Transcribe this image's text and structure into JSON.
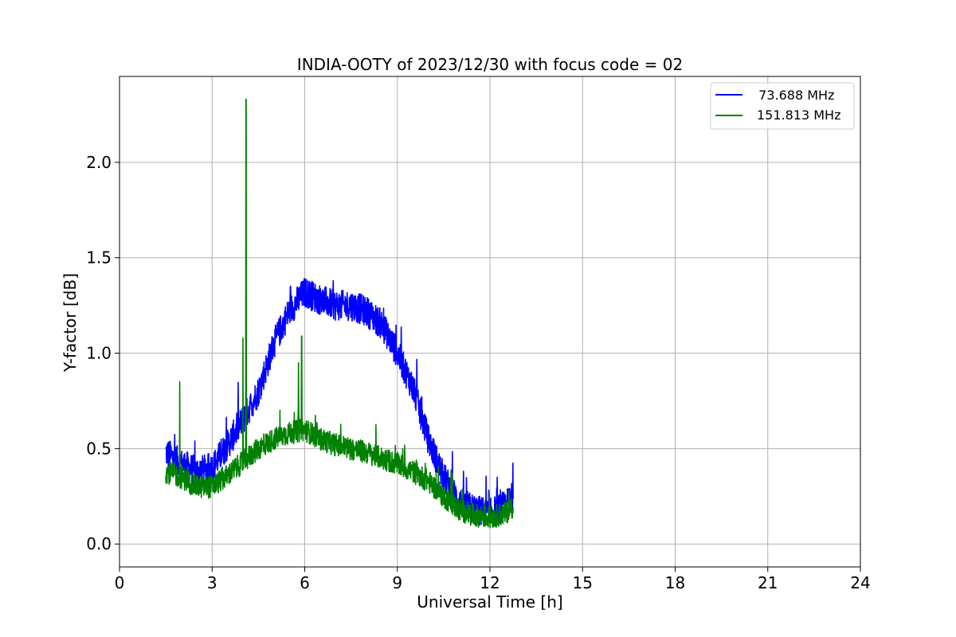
{
  "chart_data": {
    "type": "line",
    "title": "INDIA-OOTY of 2023/12/30 with focus code = 02",
    "xlabel": "Universal Time [h]",
    "ylabel": "Y-factor [dB]",
    "xlim": [
      0,
      24
    ],
    "ylim": [
      -0.12,
      2.45
    ],
    "xticks": [
      0,
      3,
      6,
      9,
      12,
      15,
      18,
      21,
      24
    ],
    "yticks": [
      0.0,
      0.5,
      1.0,
      1.5,
      2.0
    ],
    "xtick_labels": [
      "0",
      "3",
      "6",
      "9",
      "12",
      "15",
      "18",
      "21",
      "24"
    ],
    "ytick_labels": [
      "0.0",
      "0.5",
      "1.0",
      "1.5",
      "2.0"
    ],
    "grid": true,
    "legend_position": "top-right",
    "series": [
      {
        "name": "  73.688 MHz",
        "color": "#0000ff",
        "x": [
          1.5,
          2.0,
          2.5,
          3.0,
          3.5,
          4.0,
          4.5,
          5.0,
          5.5,
          6.0,
          6.5,
          7.0,
          7.5,
          8.0,
          8.5,
          9.0,
          9.5,
          10.0,
          10.5,
          11.0,
          11.5,
          12.0,
          12.5,
          12.75
        ],
        "y": [
          0.48,
          0.42,
          0.38,
          0.4,
          0.52,
          0.65,
          0.8,
          1.05,
          1.22,
          1.32,
          1.28,
          1.25,
          1.25,
          1.22,
          1.15,
          1.0,
          0.82,
          0.55,
          0.35,
          0.22,
          0.18,
          0.16,
          0.2,
          0.25
        ],
        "noise": 0.08
      },
      {
        "name": "151.813 MHz",
        "color": "#008000",
        "x": [
          1.5,
          2.0,
          2.5,
          3.0,
          3.5,
          4.0,
          4.5,
          5.0,
          5.5,
          6.0,
          6.5,
          7.0,
          7.5,
          8.0,
          8.5,
          9.0,
          9.5,
          10.0,
          10.5,
          11.0,
          11.5,
          12.0,
          12.5,
          12.75
        ],
        "y": [
          0.38,
          0.35,
          0.3,
          0.3,
          0.36,
          0.43,
          0.5,
          0.55,
          0.58,
          0.6,
          0.55,
          0.52,
          0.5,
          0.48,
          0.45,
          0.42,
          0.38,
          0.33,
          0.25,
          0.18,
          0.15,
          0.14,
          0.16,
          0.2
        ],
        "noise": 0.06,
        "spikes": [
          {
            "x": 1.95,
            "y": 0.85
          },
          {
            "x": 4.0,
            "y": 1.08
          },
          {
            "x": 4.1,
            "y": 2.33
          },
          {
            "x": 5.8,
            "y": 0.95
          },
          {
            "x": 5.9,
            "y": 1.09
          }
        ]
      }
    ]
  }
}
